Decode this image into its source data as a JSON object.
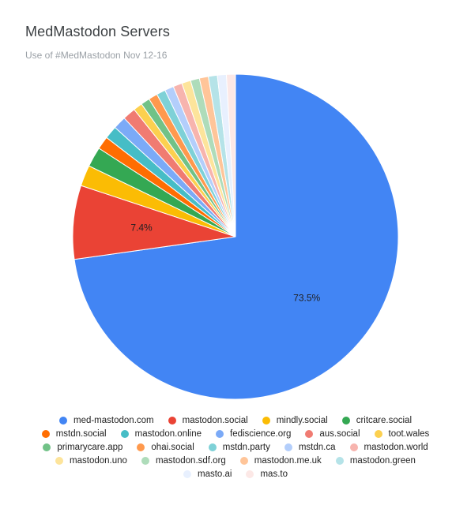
{
  "chart_data": {
    "type": "pie",
    "title": "MedMastodon Servers",
    "subtitle": "Use of #MedMastodon Nov 12-16",
    "slices": [
      {
        "label": "med-mastodon.com",
        "value": 73.5,
        "color": "#4285f4",
        "data_label": "73.5%"
      },
      {
        "label": "mastodon.social",
        "value": 7.4,
        "color": "#ea4335",
        "data_label": "7.4%"
      },
      {
        "label": "mindly.social",
        "value": 2.1,
        "color": "#fbbc04"
      },
      {
        "label": "critcare.social",
        "value": 2.0,
        "color": "#34a853"
      },
      {
        "label": "mstdn.social",
        "value": 1.3,
        "color": "#ff6d01"
      },
      {
        "label": "mastodon.online",
        "value": 1.3,
        "color": "#46bdc6"
      },
      {
        "label": "fediscience.org",
        "value": 1.3,
        "color": "#7baaf7"
      },
      {
        "label": "aus.social",
        "value": 1.3,
        "color": "#f07b72"
      },
      {
        "label": "toot.wales",
        "value": 0.9,
        "color": "#fcd04f"
      },
      {
        "label": "primarycare.app",
        "value": 0.9,
        "color": "#71c287"
      },
      {
        "label": "ohai.social",
        "value": 0.9,
        "color": "#ff994d"
      },
      {
        "label": "mstdn.party",
        "value": 0.9,
        "color": "#7ed1d7"
      },
      {
        "label": "mstdn.ca",
        "value": 0.9,
        "color": "#b3cefb"
      },
      {
        "label": "mastodon.world",
        "value": 0.9,
        "color": "#f7b4ae"
      },
      {
        "label": "mastodon.uno",
        "value": 0.9,
        "color": "#fde49b"
      },
      {
        "label": "mastodon.sdf.org",
        "value": 0.9,
        "color": "#aedcba"
      },
      {
        "label": "mastodon.me.uk",
        "value": 0.9,
        "color": "#ffc599"
      },
      {
        "label": "mastodon.green",
        "value": 0.9,
        "color": "#b5e3e8"
      },
      {
        "label": "masto.ai",
        "value": 0.9,
        "color": "#e8f0fe"
      },
      {
        "label": "mas.to",
        "value": 0.9,
        "color": "#fce8e6"
      }
    ],
    "legend_position": "bottom",
    "legend_rows": [
      [
        "med-mastodon.com",
        "mastodon.social",
        "mindly.social",
        "critcare.social"
      ],
      [
        "mstdn.social",
        "mastodon.online",
        "fediscience.org",
        "aus.social",
        "toot.wales"
      ],
      [
        "primarycare.app",
        "ohai.social",
        "mstdn.party",
        "mstdn.ca",
        "mastodon.world"
      ],
      [
        "mastodon.uno",
        "mastodon.sdf.org",
        "mastodon.me.uk",
        "mastodon.green"
      ],
      [
        "masto.ai",
        "mas.to"
      ]
    ]
  }
}
